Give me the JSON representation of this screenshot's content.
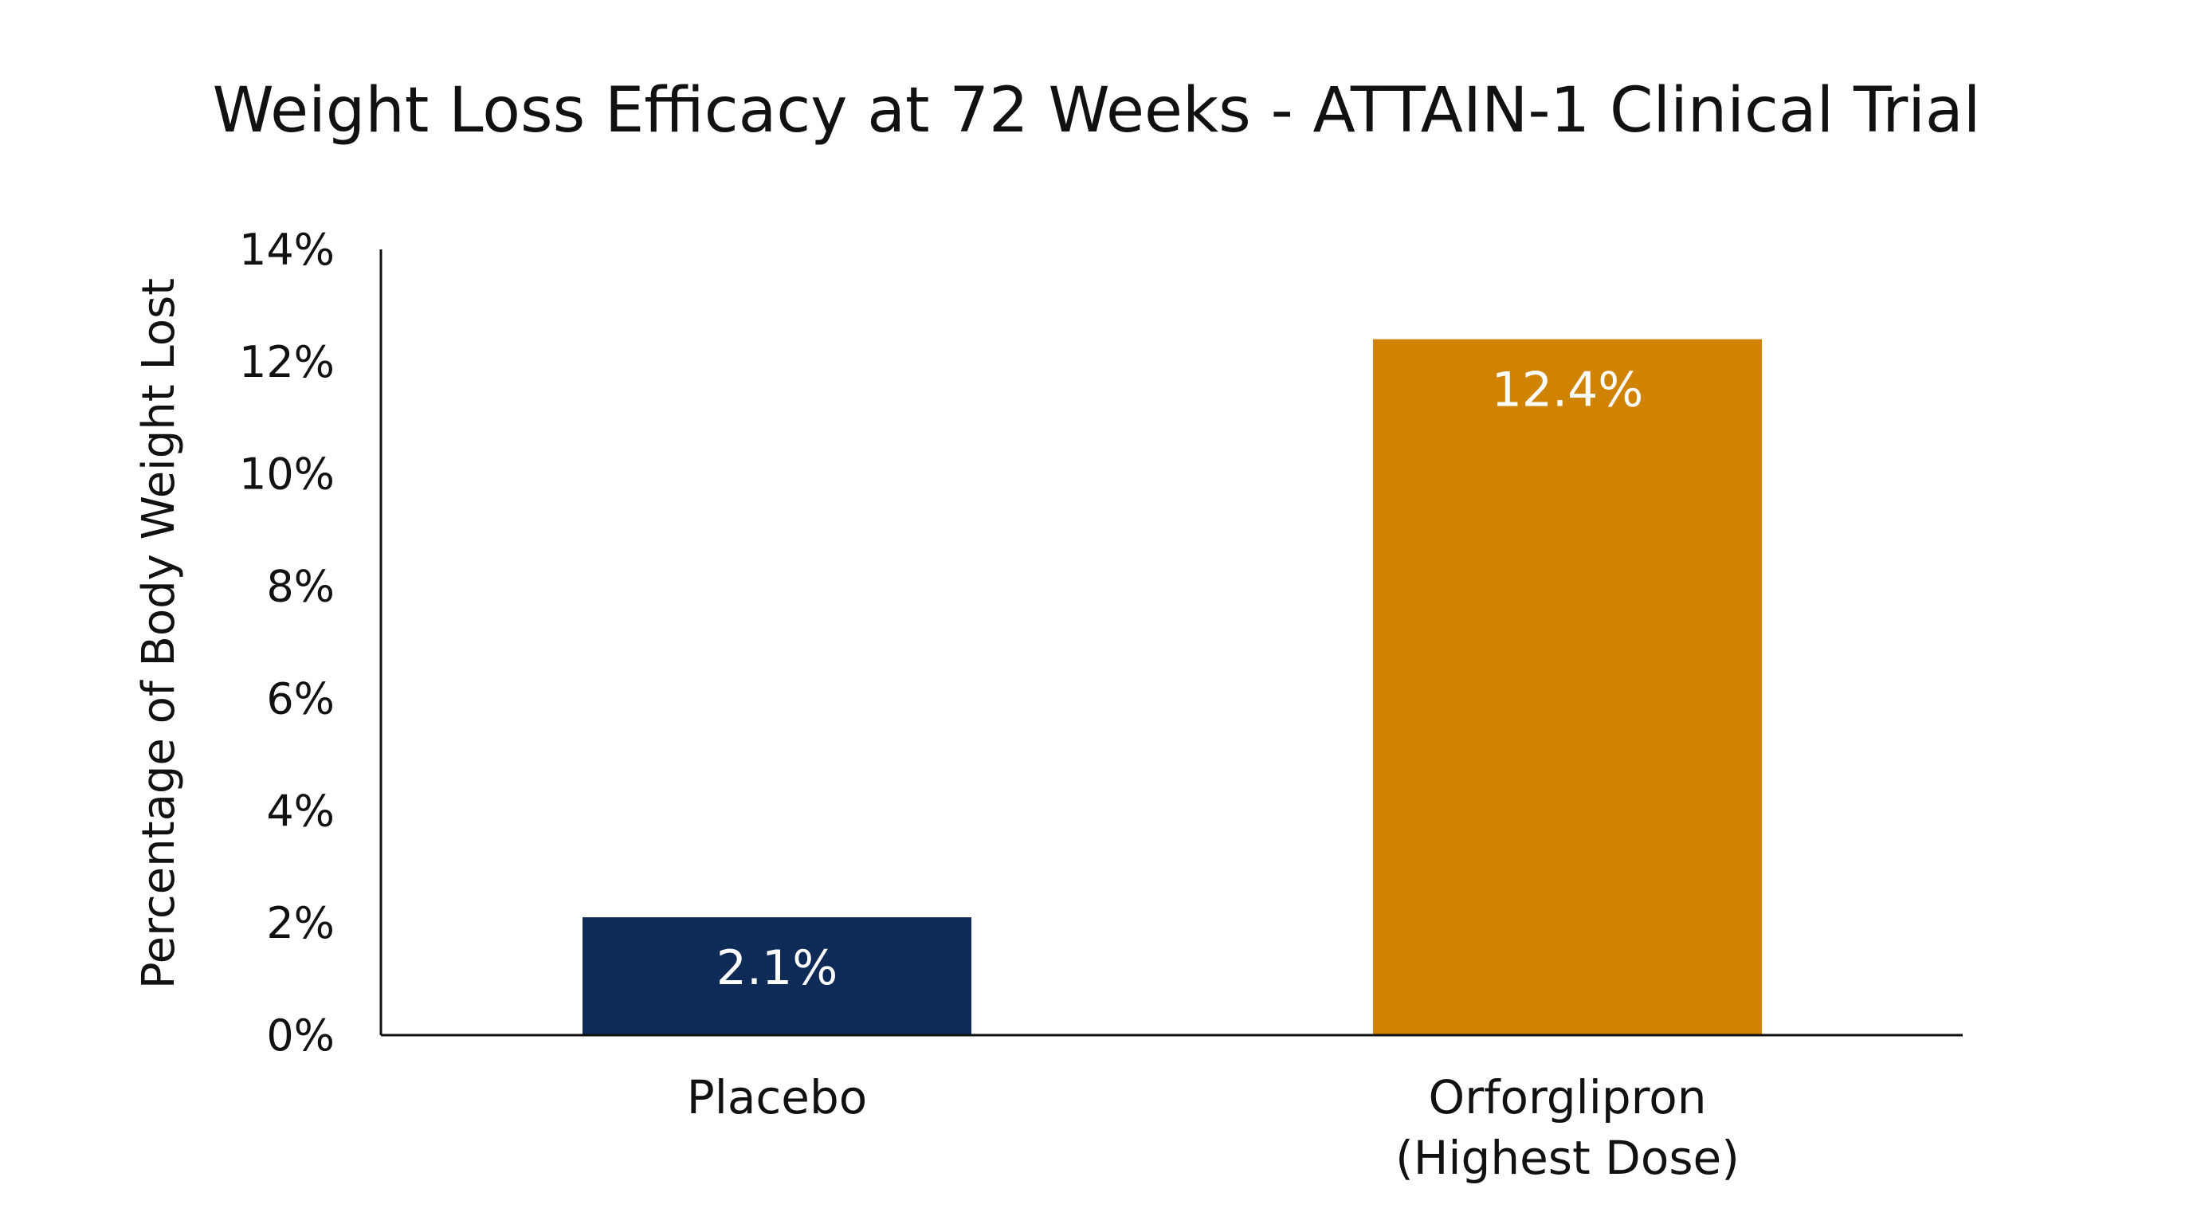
{
  "chart_data": {
    "type": "bar",
    "title": "Weight Loss Efficacy at 72 Weeks - ATTAIN-1 Clinical Trial",
    "xlabel": "",
    "ylabel": "Percentage of Body Weight Lost",
    "ylim": [
      0,
      14
    ],
    "yticks": [
      0,
      2,
      4,
      6,
      8,
      10,
      12,
      14
    ],
    "ytick_labels": [
      "0%",
      "2%",
      "4%",
      "6%",
      "8%",
      "10%",
      "12%",
      "14%"
    ],
    "grid": false,
    "categories": [
      [
        "Placebo"
      ],
      [
        "Orforglipron",
        "(Highest Dose)"
      ]
    ],
    "values": [
      2.1,
      12.4
    ],
    "data_labels": [
      "2.1%",
      "12.4%"
    ],
    "colors": [
      "#0e2a57",
      "#d08300"
    ]
  }
}
